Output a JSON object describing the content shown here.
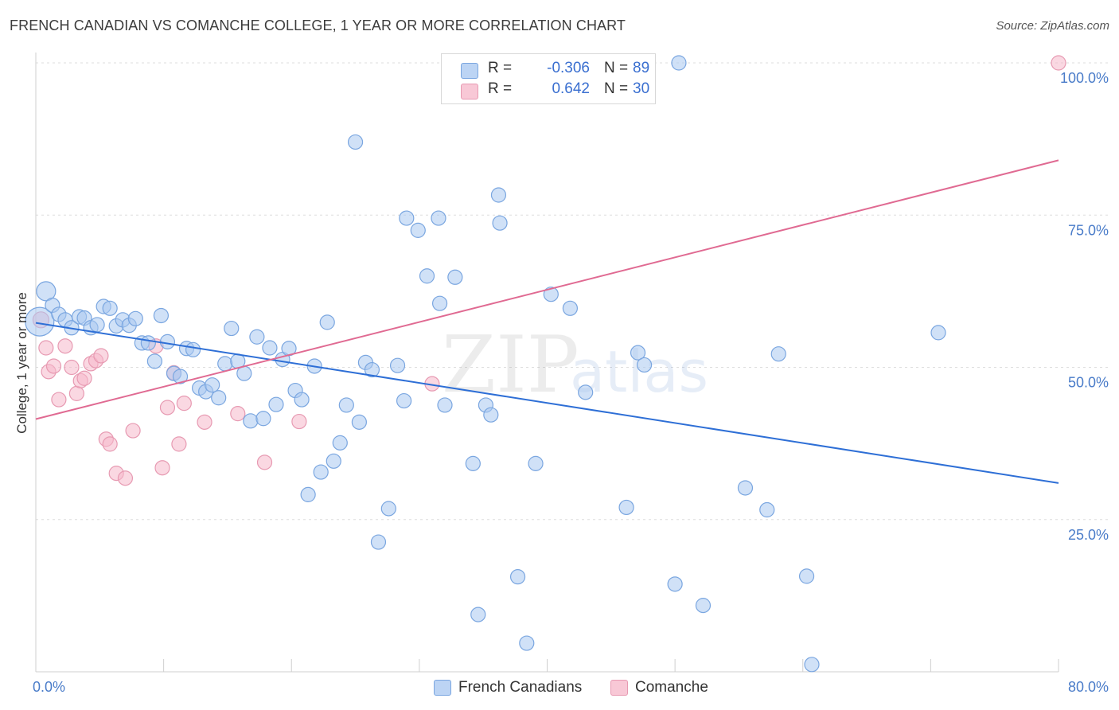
{
  "title": "FRENCH CANADIAN VS COMANCHE COLLEGE, 1 YEAR OR MORE CORRELATION CHART",
  "source": "Source: ZipAtlas.com",
  "watermark": {
    "zip": "ZIP",
    "atlas": "atlas"
  },
  "colors": {
    "blue_fill": "#a9c8f0",
    "blue_stroke": "#7aa6e0",
    "blue_line": "#2e6fd6",
    "pink_fill": "#f5b8cb",
    "pink_stroke": "#e79ab2",
    "pink_line": "#e06a92",
    "accent_text": "#3a6fd0",
    "grid": "#dedede"
  },
  "legend": {
    "rows": [
      {
        "r_label": "R =",
        "r_value": "-0.306",
        "n_label": "N =",
        "n_value": "89"
      },
      {
        "r_label": "R =",
        "r_value": "0.642",
        "n_label": "N =",
        "n_value": "30"
      }
    ]
  },
  "bottom_legend": {
    "series1": "French Canadians",
    "series2": "Comanche"
  },
  "chart_data": {
    "type": "scatter",
    "title": "FRENCH CANADIAN VS COMANCHE COLLEGE, 1 YEAR OR MORE CORRELATION CHART",
    "xlabel": "",
    "ylabel": "College, 1 year or more",
    "xlim": [
      0,
      80
    ],
    "ylim": [
      0,
      102
    ],
    "x_tick_labels": [
      "0.0%",
      "80.0%"
    ],
    "y_ticks": [
      25,
      50,
      75,
      100
    ],
    "y_tick_labels": [
      "25.0%",
      "50.0%",
      "75.0%",
      "100.0%"
    ],
    "grid": true,
    "series": [
      {
        "name": "French Canadians",
        "color": "blue",
        "r": -0.306,
        "n": 89,
        "trend": {
          "x": [
            0,
            80
          ],
          "y": [
            57.3,
            31
          ]
        },
        "points": [
          [
            0.3,
            57.5,
            18
          ],
          [
            0.8,
            62.5,
            12
          ],
          [
            1.3,
            60.2,
            9
          ],
          [
            1.8,
            58.7,
            9
          ],
          [
            2.3,
            57.8,
            9
          ],
          [
            2.8,
            56.5,
            9
          ],
          [
            3.4,
            58.3,
            9
          ],
          [
            3.8,
            58.1,
            9
          ],
          [
            4.3,
            56.5,
            9
          ],
          [
            4.8,
            57.0,
            9
          ],
          [
            5.3,
            60.0,
            9
          ],
          [
            5.8,
            59.7,
            9
          ],
          [
            6.3,
            56.8,
            9
          ],
          [
            6.8,
            57.8,
            9
          ],
          [
            7.3,
            56.9,
            9
          ],
          [
            7.8,
            58.0,
            9
          ],
          [
            8.3,
            54.0,
            9
          ],
          [
            8.8,
            54.0,
            9
          ],
          [
            9.3,
            51.0,
            9
          ],
          [
            9.8,
            58.5,
            9
          ],
          [
            10.3,
            54.2,
            9
          ],
          [
            10.8,
            49.0,
            9
          ],
          [
            11.3,
            48.5,
            9
          ],
          [
            11.8,
            53.1,
            9
          ],
          [
            12.3,
            52.9,
            9
          ],
          [
            12.8,
            46.6,
            9
          ],
          [
            13.3,
            46.0,
            9
          ],
          [
            13.8,
            47.1,
            9
          ],
          [
            14.3,
            45.0,
            9
          ],
          [
            14.8,
            50.6,
            9
          ],
          [
            15.3,
            56.4,
            9
          ],
          [
            15.8,
            51.0,
            9
          ],
          [
            16.3,
            49.0,
            9
          ],
          [
            16.8,
            41.2,
            9
          ],
          [
            17.3,
            55.0,
            9
          ],
          [
            17.8,
            41.6,
            9
          ],
          [
            18.3,
            53.2,
            9
          ],
          [
            18.8,
            43.9,
            9
          ],
          [
            19.3,
            51.3,
            9
          ],
          [
            19.8,
            53.1,
            9
          ],
          [
            20.3,
            46.2,
            9
          ],
          [
            20.8,
            44.7,
            9
          ],
          [
            21.3,
            29.1,
            9
          ],
          [
            21.8,
            50.2,
            9
          ],
          [
            22.3,
            32.8,
            9
          ],
          [
            22.8,
            57.4,
            9
          ],
          [
            23.3,
            34.6,
            9
          ],
          [
            23.8,
            37.6,
            9
          ],
          [
            24.3,
            43.8,
            9
          ],
          [
            25.0,
            87.0,
            9
          ],
          [
            25.3,
            41.0,
            9
          ],
          [
            25.8,
            50.8,
            9
          ],
          [
            26.3,
            49.6,
            9
          ],
          [
            26.8,
            21.3,
            9
          ],
          [
            27.6,
            26.8,
            9
          ],
          [
            28.3,
            50.3,
            9
          ],
          [
            28.8,
            44.5,
            9
          ],
          [
            29.0,
            74.5,
            9
          ],
          [
            29.9,
            72.5,
            9
          ],
          [
            30.6,
            65.0,
            9
          ],
          [
            31.5,
            74.5,
            9
          ],
          [
            31.6,
            60.5,
            9
          ],
          [
            32.0,
            43.8,
            9
          ],
          [
            32.8,
            64.8,
            9
          ],
          [
            34.2,
            34.2,
            9
          ],
          [
            34.6,
            9.4,
            9
          ],
          [
            35.2,
            43.8,
            9
          ],
          [
            35.6,
            42.2,
            9
          ],
          [
            36.2,
            78.3,
            9
          ],
          [
            36.3,
            73.7,
            9
          ],
          [
            37.7,
            15.6,
            9
          ],
          [
            38.4,
            4.7,
            9
          ],
          [
            39.1,
            34.2,
            9
          ],
          [
            40.3,
            62.0,
            9
          ],
          [
            41.8,
            59.7,
            9
          ],
          [
            43.0,
            45.9,
            9
          ],
          [
            46.2,
            27.0,
            9
          ],
          [
            47.1,
            52.4,
            9
          ],
          [
            47.6,
            50.4,
            9
          ],
          [
            50.0,
            14.4,
            9
          ],
          [
            50.3,
            100.0,
            9
          ],
          [
            52.2,
            10.9,
            9
          ],
          [
            55.5,
            30.2,
            9
          ],
          [
            57.2,
            26.6,
            9
          ],
          [
            58.1,
            52.2,
            9
          ],
          [
            60.3,
            15.7,
            9
          ],
          [
            60.7,
            1.2,
            9
          ],
          [
            70.6,
            55.7,
            9
          ]
        ]
      },
      {
        "name": "Comanche",
        "color": "pink",
        "r": 0.642,
        "n": 30,
        "trend": {
          "x": [
            0,
            80
          ],
          "y": [
            41.5,
            84
          ]
        },
        "points": [
          [
            0.4,
            57.8,
            10
          ],
          [
            0.8,
            53.2,
            9
          ],
          [
            1.0,
            49.3,
            9
          ],
          [
            1.4,
            50.2,
            9
          ],
          [
            1.8,
            44.7,
            9
          ],
          [
            2.3,
            53.5,
            9
          ],
          [
            2.8,
            50.0,
            9
          ],
          [
            3.2,
            45.7,
            9
          ],
          [
            3.5,
            47.8,
            9
          ],
          [
            3.8,
            48.2,
            9
          ],
          [
            4.3,
            50.6,
            9
          ],
          [
            4.7,
            51.1,
            9
          ],
          [
            5.1,
            51.9,
            9
          ],
          [
            5.5,
            38.2,
            9
          ],
          [
            5.8,
            37.4,
            9
          ],
          [
            6.3,
            32.6,
            9
          ],
          [
            7.0,
            31.8,
            9
          ],
          [
            7.6,
            39.6,
            9
          ],
          [
            9.4,
            53.5,
            9
          ],
          [
            9.9,
            33.5,
            9
          ],
          [
            10.3,
            43.4,
            9
          ],
          [
            10.8,
            49.1,
            9
          ],
          [
            11.2,
            37.4,
            9
          ],
          [
            11.6,
            44.1,
            9
          ],
          [
            13.2,
            41.0,
            9
          ],
          [
            15.8,
            42.4,
            9
          ],
          [
            17.9,
            34.4,
            9
          ],
          [
            20.6,
            41.1,
            9
          ],
          [
            31.0,
            47.3,
            9
          ],
          [
            80.0,
            100.0,
            9
          ]
        ]
      }
    ]
  }
}
